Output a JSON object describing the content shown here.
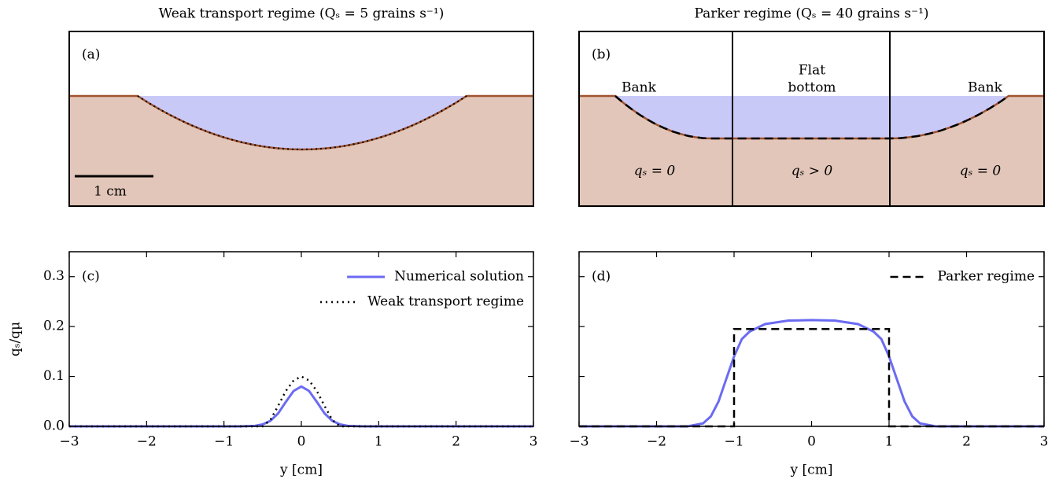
{
  "chart_data": [
    {
      "type": "profile",
      "title": "Weak transport regime (Qₛ = 5 grains s⁻¹)",
      "panel_label": "(a)",
      "scale_bar_label": "1 cm"
    },
    {
      "type": "profile-regions",
      "title": "Parker regime (Qₛ = 40 grains s⁻¹)",
      "panel_label": "(b)",
      "annotations": [
        "Bank",
        "Flat",
        "bottom",
        "Bank",
        "qₛ = 0",
        "qₛ > 0",
        "qₛ = 0"
      ]
    },
    {
      "type": "line",
      "panel_label": "(c)",
      "x_label": "y [cm]",
      "y_label": "qₛ/qμ",
      "xlim": [
        -3,
        3
      ],
      "ylim": [
        0,
        0.35
      ],
      "xticks": [
        {
          "value": -3,
          "label": "−3"
        },
        {
          "value": -2,
          "label": "−2"
        },
        {
          "value": -1,
          "label": "−1"
        },
        0,
        1,
        2,
        3
      ],
      "yticks": [
        {
          "value": 0,
          "label": "0.0"
        },
        0.1,
        0.2,
        0.3
      ],
      "legend": "upper right",
      "series": [
        {
          "name": "Numerical solution",
          "color": "#6b6bf2",
          "style": "solid",
          "x": [
            -3,
            -1,
            -0.8,
            -0.6,
            -0.5,
            -0.4,
            -0.3,
            -0.2,
            -0.1,
            0,
            0.1,
            0.2,
            0.3,
            0.4,
            0.5,
            0.6,
            0.8,
            1,
            3
          ],
          "values": [
            0,
            0,
            0,
            0.001,
            0.004,
            0.011,
            0.026,
            0.049,
            0.071,
            0.08,
            0.071,
            0.049,
            0.026,
            0.011,
            0.004,
            0.001,
            0,
            0,
            0
          ]
        },
        {
          "name": "Weak transport regime",
          "color": "#000000",
          "style": "dotted",
          "x": [
            -3,
            -0.5,
            -0.4,
            -0.3,
            -0.2,
            -0.1,
            0,
            0.1,
            0.2,
            0.3,
            0.4,
            0.5,
            3
          ],
          "values": [
            0,
            0,
            0.013,
            0.041,
            0.071,
            0.092,
            0.1,
            0.092,
            0.071,
            0.041,
            0.013,
            0,
            0
          ]
        }
      ]
    },
    {
      "type": "line",
      "panel_label": "(d)",
      "x_label": "y [cm]",
      "xlim": [
        -3,
        3
      ],
      "ylim": [
        0,
        0.35
      ],
      "xticks": [
        {
          "value": -3,
          "label": "−3"
        },
        {
          "value": -2,
          "label": "−2"
        },
        {
          "value": -1,
          "label": "−1"
        },
        0,
        1,
        2,
        3
      ],
      "yticks": [
        0,
        0.1,
        0.2,
        0.3
      ],
      "ytick_labels_visible": false,
      "legend": "upper right",
      "series": [
        {
          "color": "#6b6bf2",
          "style": "solid",
          "x": [
            -3,
            -1.6,
            -1.4,
            -1.3,
            -1.2,
            -1.1,
            -1,
            -0.9,
            -0.8,
            -0.6,
            -0.3,
            0,
            0.3,
            0.6,
            0.8,
            0.9,
            1,
            1.1,
            1.2,
            1.3,
            1.4,
            1.6,
            3
          ],
          "values": [
            0,
            0,
            0.006,
            0.02,
            0.05,
            0.095,
            0.14,
            0.175,
            0.19,
            0.205,
            0.212,
            0.213,
            0.212,
            0.205,
            0.19,
            0.175,
            0.14,
            0.095,
            0.05,
            0.02,
            0.006,
            0,
            0
          ]
        },
        {
          "name": "Parker regime",
          "color": "#000000",
          "style": "dashed",
          "x": [
            -3,
            -1,
            -1,
            1,
            1,
            3
          ],
          "values": [
            0,
            0,
            0.195,
            0.195,
            0,
            0
          ]
        }
      ]
    }
  ]
}
